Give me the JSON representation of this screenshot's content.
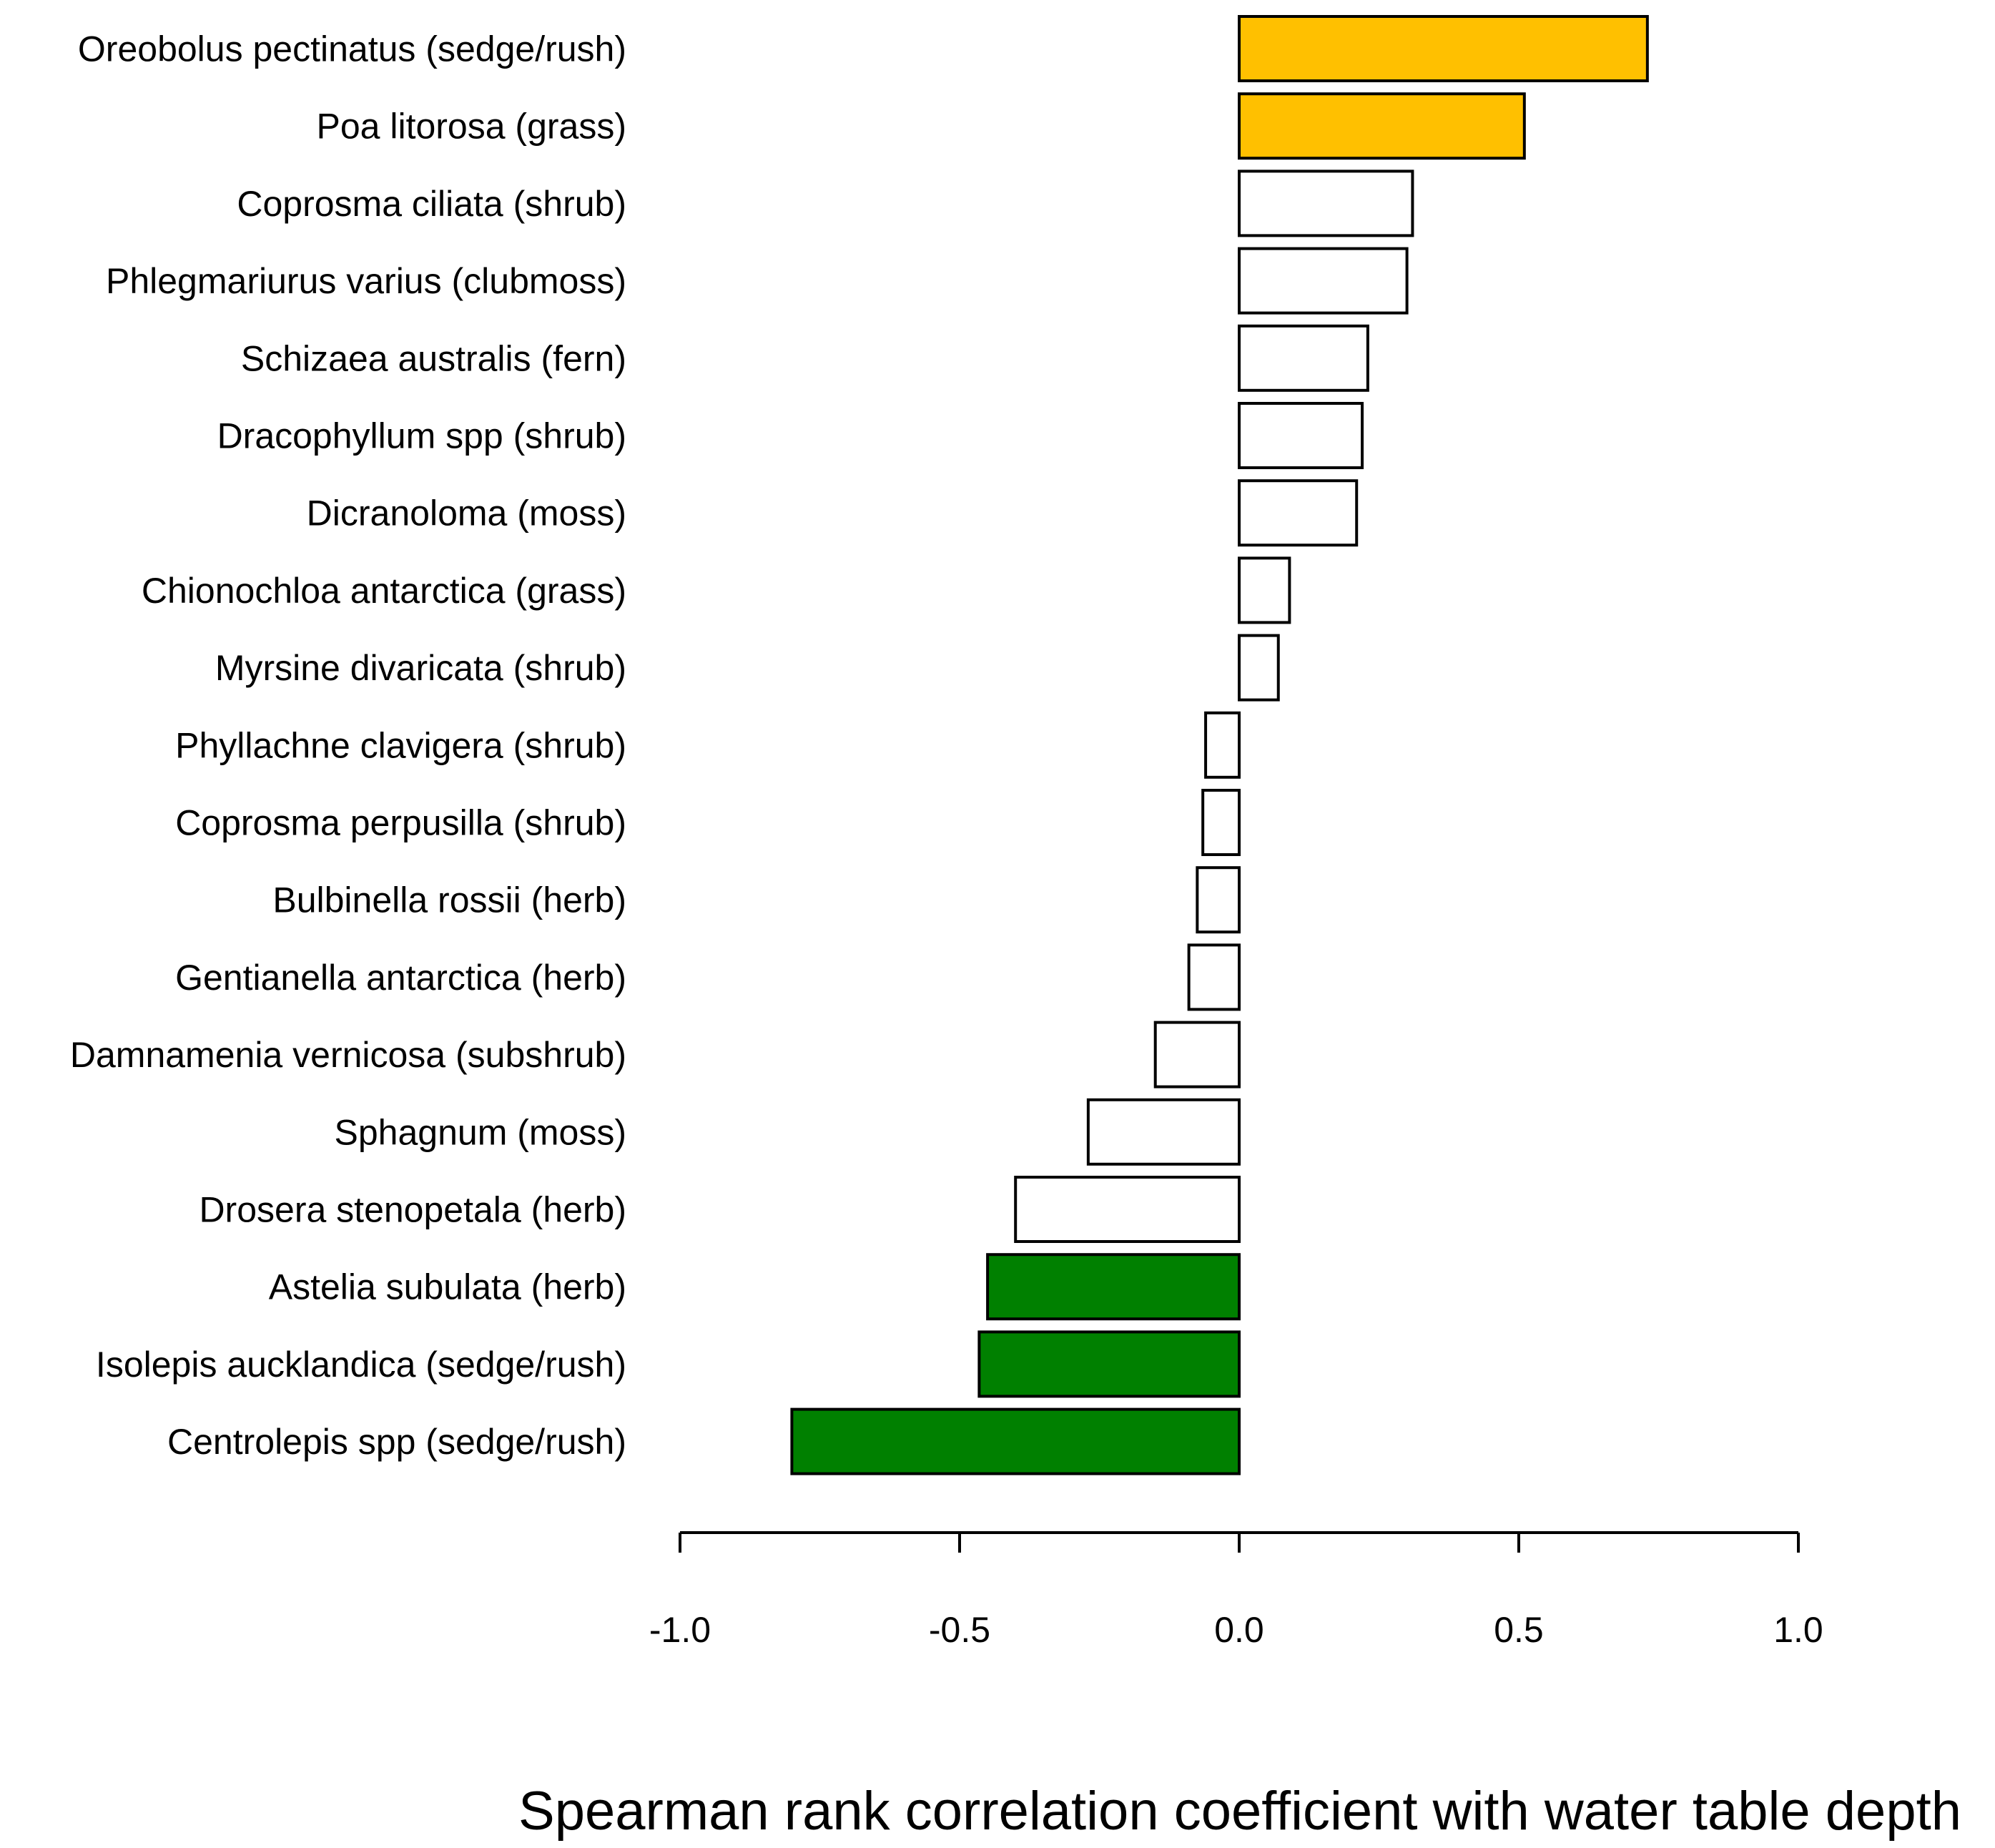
{
  "chart_data": {
    "type": "bar",
    "orientation": "horizontal",
    "title": "",
    "xlabel": "Spearman rank correlation coefficient with water table depth",
    "ylabel": "",
    "xlim": [
      -1.0,
      1.0
    ],
    "xticks": [
      -1.0,
      -0.5,
      0.0,
      0.5,
      1.0
    ],
    "xtick_labels": [
      "-1.0",
      "-0.5",
      "0.0",
      "0.5",
      "1.0"
    ],
    "grid": false,
    "legend": null,
    "colors": {
      "positive_significant": "#FFC000",
      "negative_significant": "#008000",
      "not_significant": "#FFFFFF",
      "outline": "#000000"
    },
    "categories": [
      "Oreobolus pectinatus (sedge/rush)",
      "Poa litorosa (grass)",
      "Coprosma ciliata (shrub)",
      "Phlegmariurus varius (clubmoss)",
      "Schizaea australis (fern)",
      "Dracophyllum spp (shrub)",
      "Dicranoloma (moss)",
      "Chionochloa antarctica (grass)",
      "Myrsine divaricata (shrub)",
      "Phyllachne clavigera (shrub)",
      "Coprosma perpusilla (shrub)",
      "Bulbinella rossii (herb)",
      "Gentianella antarctica (herb)",
      "Damnamenia vernicosa (subshrub)",
      "Sphagnum (moss)",
      "Drosera stenopetala (herb)",
      "Astelia subulata (herb)",
      "Isolepis aucklandica (sedge/rush)",
      "Centrolepis spp (sedge/rush)"
    ],
    "values": [
      0.73,
      0.51,
      0.31,
      0.3,
      0.23,
      0.22,
      0.21,
      0.09,
      0.07,
      -0.06,
      -0.065,
      -0.075,
      -0.09,
      -0.15,
      -0.27,
      -0.4,
      -0.45,
      -0.465,
      -0.8
    ],
    "bar_colors": [
      "#FFC000",
      "#FFC000",
      "#FFFFFF",
      "#FFFFFF",
      "#FFFFFF",
      "#FFFFFF",
      "#FFFFFF",
      "#FFFFFF",
      "#FFFFFF",
      "#FFFFFF",
      "#FFFFFF",
      "#FFFFFF",
      "#FFFFFF",
      "#FFFFFF",
      "#FFFFFF",
      "#FFFFFF",
      "#008000",
      "#008000",
      "#008000"
    ]
  }
}
